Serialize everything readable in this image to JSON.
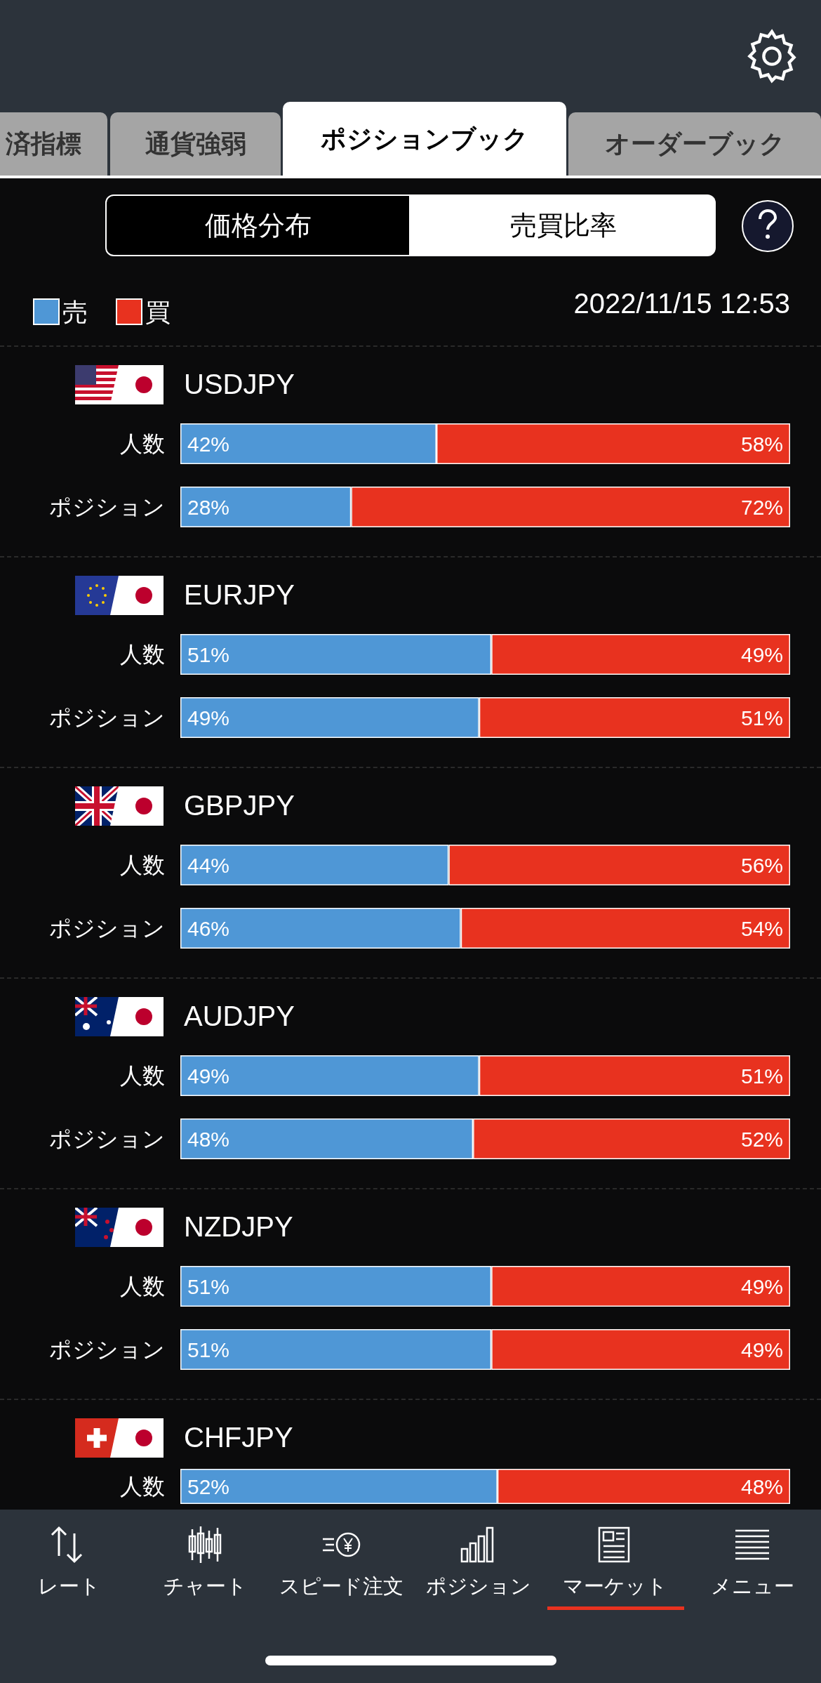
{
  "chart_data": [
    {
      "type": "bar",
      "orientation": "horizontal",
      "stacked": true,
      "title": "USDJPY",
      "categories": [
        "人数",
        "ポジション"
      ],
      "xlim": [
        0,
        100
      ],
      "tick_labels": "y",
      "legend": "top left",
      "series": [
        {
          "name": "売",
          "color": "#4f97d6",
          "values": [
            42,
            28
          ],
          "value_labels": [
            "42%",
            "28%"
          ]
        },
        {
          "name": "買",
          "color": "#e8321f",
          "values": [
            58,
            72
          ],
          "value_labels": [
            "58%",
            "72%"
          ]
        }
      ],
      "annotations": [
        "済指標",
        "通貨強弱",
        "ポジションブック",
        "オーダーブック",
        "価格分布",
        "売買比率",
        "2022/11/15 12:53",
        "レート",
        "チャート",
        "スピード注文",
        "ポジション",
        "マーケット",
        "メニュー"
      ]
    },
    {
      "type": "bar",
      "orientation": "horizontal",
      "stacked": true,
      "title": "EURJPY",
      "categories": [
        "人数",
        "ポジション"
      ],
      "xlim": [
        0,
        100
      ],
      "tick_labels": "y",
      "series": [
        {
          "color": "#4f97d6",
          "values": [
            51,
            49
          ],
          "value_labels": [
            "51%",
            "49%"
          ]
        },
        {
          "color": "#e8321f",
          "values": [
            49,
            51
          ],
          "value_labels": [
            "49%",
            "51%"
          ]
        }
      ]
    },
    {
      "type": "bar",
      "orientation": "horizontal",
      "stacked": true,
      "title": "GBPJPY",
      "categories": [
        "人数",
        "ポジション"
      ],
      "xlim": [
        0,
        100
      ],
      "tick_labels": "y",
      "series": [
        {
          "color": "#4f97d6",
          "values": [
            44,
            46
          ],
          "value_labels": [
            "44%",
            "46%"
          ]
        },
        {
          "color": "#e8321f",
          "values": [
            56,
            54
          ],
          "value_labels": [
            "56%",
            "54%"
          ]
        }
      ]
    },
    {
      "type": "bar",
      "orientation": "horizontal",
      "stacked": true,
      "title": "AUDJPY",
      "categories": [
        "人数",
        "ポジション"
      ],
      "xlim": [
        0,
        100
      ],
      "tick_labels": "y",
      "series": [
        {
          "color": "#4f97d6",
          "values": [
            49,
            48
          ],
          "value_labels": [
            "49%",
            "48%"
          ]
        },
        {
          "color": "#e8321f",
          "values": [
            51,
            52
          ],
          "value_labels": [
            "51%",
            "52%"
          ]
        }
      ]
    },
    {
      "type": "bar",
      "orientation": "horizontal",
      "stacked": true,
      "title": "NZDJPY",
      "categories": [
        "人数",
        "ポジション"
      ],
      "xlim": [
        0,
        100
      ],
      "tick_labels": "y",
      "series": [
        {
          "color": "#4f97d6",
          "values": [
            51,
            51
          ],
          "value_labels": [
            "51%",
            "51%"
          ]
        },
        {
          "color": "#e8321f",
          "values": [
            49,
            49
          ],
          "value_labels": [
            "49%",
            "49%"
          ]
        }
      ]
    },
    {
      "type": "bar",
      "orientation": "horizontal",
      "stacked": true,
      "title": "CHFJPY",
      "categories": [
        "人数"
      ],
      "xlim": [
        0,
        100
      ],
      "tick_labels": "y",
      "series": [
        {
          "color": "#4f97d6",
          "values": [
            52
          ],
          "value_labels": [
            "52%"
          ]
        },
        {
          "color": "#e8321f",
          "values": [
            48
          ],
          "value_labels": [
            "48%"
          ]
        }
      ]
    }
  ]
}
